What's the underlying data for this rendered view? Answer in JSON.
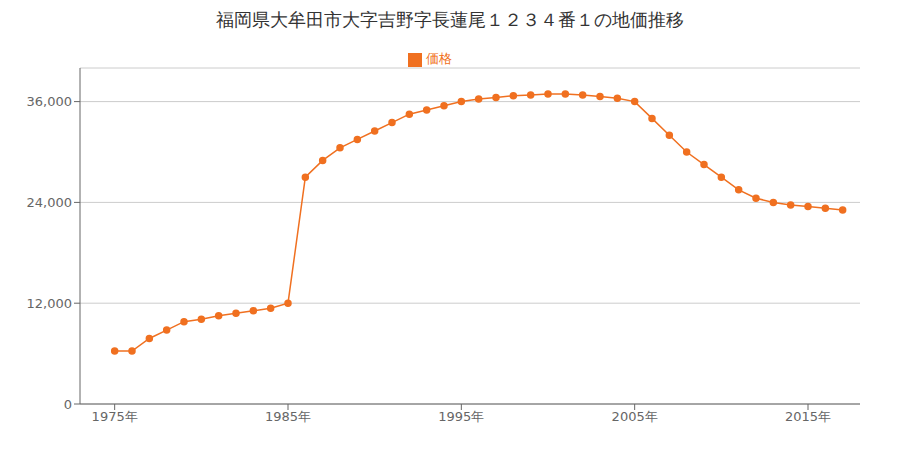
{
  "chart_data": {
    "type": "line",
    "title": "福岡県大牟田市大字吉野字長蓮尾１２３４番１の地価推移",
    "x": [
      1975,
      1976,
      1977,
      1978,
      1979,
      1980,
      1981,
      1982,
      1983,
      1984,
      1985,
      1986,
      1987,
      1988,
      1989,
      1990,
      1991,
      1992,
      1993,
      1994,
      1995,
      1996,
      1997,
      1998,
      1999,
      2000,
      2001,
      2002,
      2003,
      2004,
      2005,
      2006,
      2007,
      2008,
      2009,
      2010,
      2011,
      2012,
      2013,
      2014,
      2015,
      2016,
      2017
    ],
    "series": [
      {
        "name": "価格",
        "color": "#f07020",
        "marker": "circle",
        "values": [
          6300,
          6300,
          7800,
          8800,
          9800,
          10100,
          10500,
          10800,
          11100,
          11400,
          12000,
          27000,
          29000,
          30500,
          31500,
          32500,
          33500,
          34500,
          35000,
          35500,
          36000,
          36300,
          36500,
          36700,
          36800,
          36900,
          36900,
          36800,
          36600,
          36400,
          36000,
          34000,
          32000,
          30000,
          28500,
          27000,
          25500,
          24500,
          24000,
          23700,
          23500,
          23300,
          23100
        ]
      }
    ],
    "xlim": [
      1973,
      2018
    ],
    "xticks": [
      {
        "value": 1975,
        "label": "1975年"
      },
      {
        "value": 1985,
        "label": "1985年"
      },
      {
        "value": 1995,
        "label": "1995年"
      },
      {
        "value": 2005,
        "label": "2005年"
      },
      {
        "value": 2015,
        "label": "2015年"
      }
    ],
    "ylim": [
      0,
      40000
    ],
    "yticks": [
      0,
      {
        "value": 12000,
        "label": "12,000"
      },
      {
        "value": 24000,
        "label": "24,000"
      },
      {
        "value": 36000,
        "label": "36,000"
      }
    ],
    "grid": true,
    "legend": "top"
  }
}
